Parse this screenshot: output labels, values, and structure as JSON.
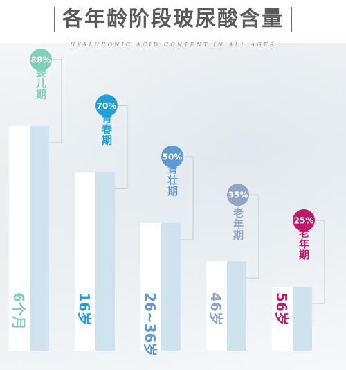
{
  "title": "各年龄阶段玻尿酸含量",
  "subtitle": "HYALURONIC ACID CONTENT IN ALL AGES",
  "chart_data": {
    "type": "bar",
    "categories": [
      "6个月",
      "16岁",
      "26~36岁",
      "46岁",
      "56岁"
    ],
    "stages": [
      "婴儿期",
      "青春期",
      "青壮期",
      "中老年期",
      "老年期"
    ],
    "values": [
      88,
      70,
      50,
      35,
      25
    ],
    "value_labels": [
      "88%",
      "70%",
      "50%",
      "35%",
      "25%"
    ],
    "unit": "%",
    "ylim": [
      0,
      100
    ],
    "grid": false,
    "colors": [
      "#7fd1b6",
      "#1ea1d8",
      "#5c9ad2",
      "#8ea6c8",
      "#c2186b"
    ]
  }
}
